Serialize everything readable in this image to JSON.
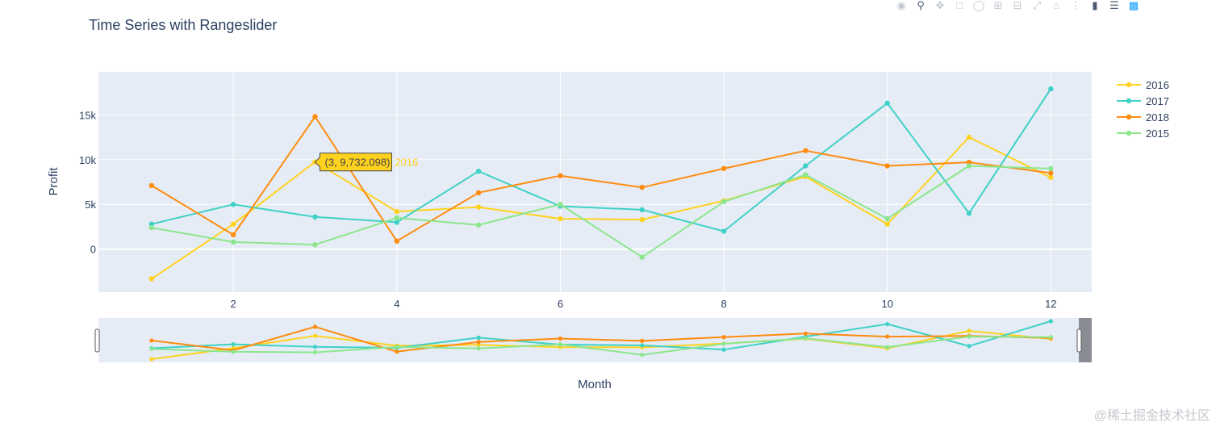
{
  "chart_data": {
    "type": "line",
    "title": "Time Series with Rangeslider",
    "xlabel": "Month",
    "ylabel": "Profit",
    "xlim": [
      0.35,
      12.5
    ],
    "ylim": [
      -4800,
      19800
    ],
    "x_ticks": [
      2,
      4,
      6,
      8,
      10,
      12
    ],
    "y_ticks": [
      0,
      5000,
      10000,
      15000
    ],
    "y_tick_labels": [
      "0",
      "5k",
      "10k",
      "15k"
    ],
    "x": [
      1,
      2,
      3,
      4,
      5,
      6,
      7,
      8,
      9,
      10,
      11,
      12
    ],
    "series": [
      {
        "name": "2016",
        "color": "#FFD21F",
        "values": [
          -3300,
          2800,
          9732.098,
          4200,
          4700,
          3400,
          3300,
          5400,
          8100,
          2800,
          12500,
          8000
        ]
      },
      {
        "name": "2017",
        "color": "#3FD1C6",
        "values": [
          2800,
          5000,
          3600,
          3000,
          8700,
          4800,
          4400,
          2000,
          9300,
          16300,
          4000,
          17900
        ]
      },
      {
        "name": "2018",
        "color": "#FF8C0F",
        "values": [
          7100,
          1600,
          14800,
          900,
          6300,
          8200,
          6900,
          9000,
          11000,
          9300,
          9700,
          8500
        ]
      },
      {
        "name": "2015",
        "color": "#8CE68C",
        "values": [
          2400,
          800,
          500,
          3500,
          2700,
          5000,
          -900,
          5300,
          8300,
          3400,
          9300,
          9000
        ]
      }
    ],
    "hover": {
      "label": "(3, 9,732.098)",
      "name": "2016",
      "x": 3,
      "y": 9732.098,
      "color": "#FFD21F"
    },
    "legend_position": "top-right",
    "grid": true,
    "rangeslider": true
  },
  "modebar": {
    "icons": [
      "camera-icon",
      "zoom-icon",
      "pan-icon",
      "box-select-icon",
      "lasso-icon",
      "zoom-in-icon",
      "zoom-out-icon",
      "autoscale-icon",
      "home-icon",
      "spike-icon",
      "hover-closest-icon",
      "hover-compare-icon",
      "plotly-logo-icon"
    ]
  },
  "watermark": "@稀土掘金技术社区"
}
